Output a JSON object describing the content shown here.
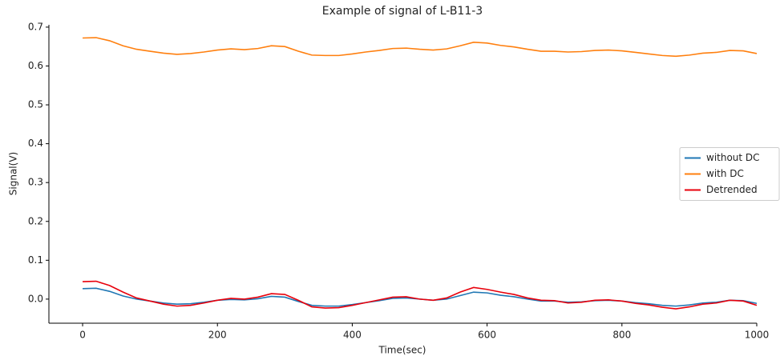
{
  "chart_data": {
    "type": "line",
    "title": "Example of signal of L-B11-3",
    "x_label": "Time(sec)",
    "y_label": "Signal(V)",
    "x": [
      0,
      20,
      40,
      60,
      80,
      100,
      120,
      140,
      160,
      180,
      200,
      220,
      240,
      260,
      280,
      300,
      320,
      340,
      360,
      380,
      400,
      420,
      440,
      460,
      480,
      500,
      520,
      540,
      560,
      580,
      600,
      620,
      640,
      660,
      680,
      700,
      720,
      740,
      760,
      780,
      800,
      820,
      840,
      860,
      880,
      900,
      920,
      940,
      960,
      980,
      1000
    ],
    "series": [
      {
        "name": "without DC",
        "color": "#1f77b4",
        "values": [
          0.027,
          0.028,
          0.02,
          0.008,
          0.0,
          -0.005,
          -0.01,
          -0.013,
          -0.012,
          -0.008,
          -0.003,
          -0.001,
          -0.002,
          0.001,
          0.007,
          0.005,
          -0.006,
          -0.016,
          -0.018,
          -0.018,
          -0.014,
          -0.009,
          -0.004,
          0.002,
          0.003,
          0.0,
          -0.003,
          0.0,
          0.009,
          0.018,
          0.016,
          0.01,
          0.006,
          0.0,
          -0.005,
          -0.005,
          -0.008,
          -0.007,
          -0.004,
          -0.003,
          -0.005,
          -0.009,
          -0.012,
          -0.016,
          -0.018,
          -0.015,
          -0.01,
          -0.008,
          -0.003,
          -0.004,
          -0.011
        ]
      },
      {
        "name": "with DC",
        "color": "#ff7f0e",
        "values": [
          0.672,
          0.673,
          0.665,
          0.652,
          0.643,
          0.638,
          0.633,
          0.63,
          0.632,
          0.636,
          0.641,
          0.644,
          0.642,
          0.645,
          0.652,
          0.65,
          0.638,
          0.628,
          0.627,
          0.627,
          0.631,
          0.636,
          0.64,
          0.645,
          0.646,
          0.643,
          0.641,
          0.644,
          0.652,
          0.661,
          0.659,
          0.653,
          0.649,
          0.643,
          0.638,
          0.638,
          0.636,
          0.637,
          0.64,
          0.641,
          0.639,
          0.635,
          0.631,
          0.627,
          0.625,
          0.628,
          0.633,
          0.635,
          0.64,
          0.639,
          0.632
        ]
      },
      {
        "name": "Detrended",
        "color": "#e8000b",
        "values": [
          0.045,
          0.046,
          0.035,
          0.018,
          0.003,
          -0.005,
          -0.013,
          -0.018,
          -0.016,
          -0.01,
          -0.003,
          0.002,
          0.0,
          0.005,
          0.014,
          0.012,
          -0.003,
          -0.02,
          -0.023,
          -0.022,
          -0.016,
          -0.009,
          -0.002,
          0.005,
          0.006,
          0.0,
          -0.003,
          0.003,
          0.018,
          0.03,
          0.025,
          0.018,
          0.012,
          0.003,
          -0.003,
          -0.004,
          -0.01,
          -0.008,
          -0.003,
          -0.002,
          -0.005,
          -0.011,
          -0.015,
          -0.021,
          -0.025,
          -0.02,
          -0.013,
          -0.01,
          -0.003,
          -0.005,
          -0.016
        ]
      }
    ],
    "xlim": [
      -50,
      1000
    ],
    "ylim": [
      -0.062,
      0.706
    ],
    "xticks": [
      0,
      200,
      400,
      600,
      800,
      1000
    ],
    "yticks": [
      {
        "value": 0,
        "label": "0.0"
      },
      0.1,
      0.2,
      0.3,
      0.4,
      0.5,
      0.6,
      0.7
    ],
    "grid": false,
    "legend": "center right"
  }
}
